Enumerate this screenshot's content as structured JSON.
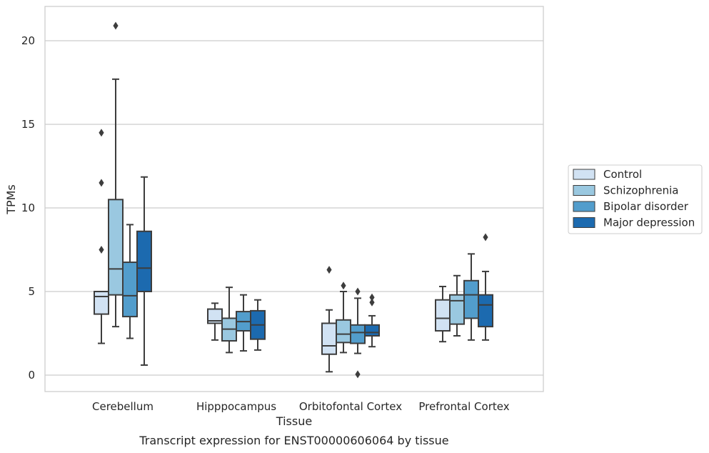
{
  "chart_data": {
    "type": "box",
    "title": "Transcript expression for ENST00000606064 by tissue",
    "xlabel": "Tissue",
    "ylabel": "TPMs",
    "ylim": [
      -1,
      22
    ],
    "yticks": [
      0,
      5,
      10,
      15,
      20
    ],
    "grid": "horizontal",
    "legend_position": "right",
    "categories": [
      "Cerebellum",
      "Hipppocampus",
      "Orbitofontal Cortex",
      "Prefrontal Cortex"
    ],
    "series": [
      {
        "name": "Control",
        "color": "#d1e2f3",
        "boxes": [
          {
            "whislo": 1.9,
            "q1": 3.65,
            "med": 4.7,
            "q3": 5.0,
            "whishi": 5.0,
            "fliers": [
              7.5,
              11.5,
              14.5
            ]
          },
          {
            "whislo": 2.1,
            "q1": 3.1,
            "med": 3.25,
            "q3": 3.95,
            "whishi": 4.3,
            "fliers": []
          },
          {
            "whislo": 0.2,
            "q1": 1.25,
            "med": 1.75,
            "q3": 3.1,
            "whishi": 3.9,
            "fliers": [
              6.3
            ]
          },
          {
            "whislo": 2.0,
            "q1": 2.65,
            "med": 3.4,
            "q3": 4.5,
            "whishi": 5.3,
            "fliers": []
          }
        ]
      },
      {
        "name": "Schizophrenia",
        "color": "#9ac8e0",
        "boxes": [
          {
            "whislo": 2.9,
            "q1": 4.8,
            "med": 6.35,
            "q3": 10.5,
            "whishi": 17.7,
            "fliers": [
              20.9
            ]
          },
          {
            "whislo": 1.35,
            "q1": 2.05,
            "med": 2.75,
            "q3": 3.4,
            "whishi": 5.25,
            "fliers": []
          },
          {
            "whislo": 1.35,
            "q1": 1.95,
            "med": 2.45,
            "q3": 3.3,
            "whishi": 5.0,
            "fliers": [
              5.35
            ]
          },
          {
            "whislo": 2.35,
            "q1": 3.05,
            "med": 4.45,
            "q3": 4.8,
            "whishi": 5.95,
            "fliers": []
          }
        ]
      },
      {
        "name": "Bipolar disorder",
        "color": "#529dcc",
        "boxes": [
          {
            "whislo": 2.2,
            "q1": 3.5,
            "med": 4.75,
            "q3": 6.75,
            "whishi": 9.0,
            "fliers": []
          },
          {
            "whislo": 1.45,
            "q1": 2.65,
            "med": 3.2,
            "q3": 3.8,
            "whishi": 4.8,
            "fliers": []
          },
          {
            "whislo": 1.3,
            "q1": 1.9,
            "med": 2.55,
            "q3": 3.0,
            "whishi": 4.6,
            "fliers": [
              0.05,
              5.0
            ]
          },
          {
            "whislo": 2.1,
            "q1": 3.4,
            "med": 4.8,
            "q3": 5.65,
            "whishi": 7.25,
            "fliers": []
          }
        ]
      },
      {
        "name": "Major depression",
        "color": "#1c6aaf",
        "boxes": [
          {
            "whislo": 0.6,
            "q1": 5.0,
            "med": 6.4,
            "q3": 8.6,
            "whishi": 11.85,
            "fliers": []
          },
          {
            "whislo": 1.5,
            "q1": 2.15,
            "med": 3.0,
            "q3": 3.85,
            "whishi": 4.5,
            "fliers": []
          },
          {
            "whislo": 1.7,
            "q1": 2.35,
            "med": 2.55,
            "q3": 3.0,
            "whishi": 3.55,
            "fliers": [
              4.35,
              4.65
            ]
          },
          {
            "whislo": 2.1,
            "q1": 2.9,
            "med": 4.2,
            "q3": 4.8,
            "whishi": 6.2,
            "fliers": [
              8.25
            ]
          }
        ]
      }
    ]
  }
}
